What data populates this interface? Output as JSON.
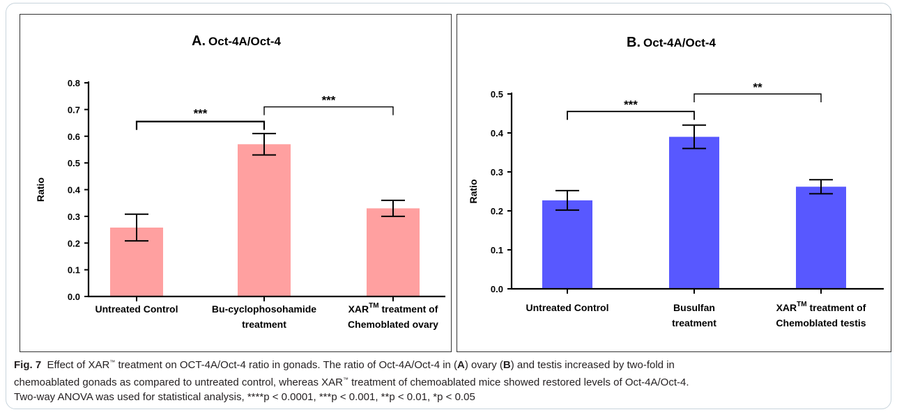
{
  "chart_data": [
    {
      "type": "bar",
      "panel_label": "A.",
      "title": "Oct-4A/Oct-4",
      "ylabel": "Ratio",
      "xlabel": "",
      "ylim": [
        0,
        0.8
      ],
      "yticks": [
        "0.0",
        "0.1",
        "0.2",
        "0.3",
        "0.4",
        "0.5",
        "0.6",
        "0.7",
        "0.8"
      ],
      "bar_color": "#ffa0a0",
      "categories": [
        [
          "Untreated Control"
        ],
        [
          "Bu-cyclophosohamide",
          "treatment"
        ],
        [
          "XARTM treatment of",
          "Chemoblated ovary"
        ]
      ],
      "values": [
        0.258,
        0.57,
        0.33
      ],
      "errors": [
        0.05,
        0.04,
        0.03
      ],
      "significance": [
        {
          "from": 0,
          "to": 1,
          "label": "***",
          "y": 0.655
        },
        {
          "from": 1,
          "to": 2,
          "label": "***",
          "y": 0.71
        }
      ]
    },
    {
      "type": "bar",
      "panel_label": "B.",
      "title": "Oct-4A/Oct-4",
      "ylabel": "Ratio",
      "xlabel": "",
      "ylim": [
        0,
        0.5
      ],
      "yticks": [
        "0.0",
        "0.1",
        "0.2",
        "0.3",
        "0.4",
        "0.5"
      ],
      "bar_color": "#5858ff",
      "categories": [
        [
          "Untreated Control"
        ],
        [
          "Busulfan",
          "treatment"
        ],
        [
          "XARTM treatment of",
          "Chemoblated testis"
        ]
      ],
      "values": [
        0.227,
        0.39,
        0.262
      ],
      "errors": [
        0.025,
        0.03,
        0.018
      ],
      "significance": [
        {
          "from": 0,
          "to": 1,
          "label": "***",
          "y": 0.455
        },
        {
          "from": 1,
          "to": 2,
          "label": "**",
          "y": 0.5
        }
      ]
    }
  ],
  "caption": {
    "fig_label": "Fig. 7",
    "line1_a": "Effect of XAR",
    "line1_tm": "™",
    "line1_b": " treatment on OCT-4A/Oct-4 ratio in gonads. The ratio of Oct-4A/Oct-4 in (",
    "letter_a": "A",
    "line1_c": ") ovary (",
    "letter_b": "B",
    "line1_d": ") and testis increased by two-fold in",
    "line2_a": "chemoablated gonads as compared to untreated control, whereas XAR",
    "line2_tm": "™",
    "line2_b": " treatment of chemoablated mice showed restored levels of Oct-4A/Oct-4.",
    "line3": "Two-way ANOVA was used for statistical analysis, ****p < 0.0001, ***p < 0.001, **p < 0.01, *p < 0.05"
  }
}
